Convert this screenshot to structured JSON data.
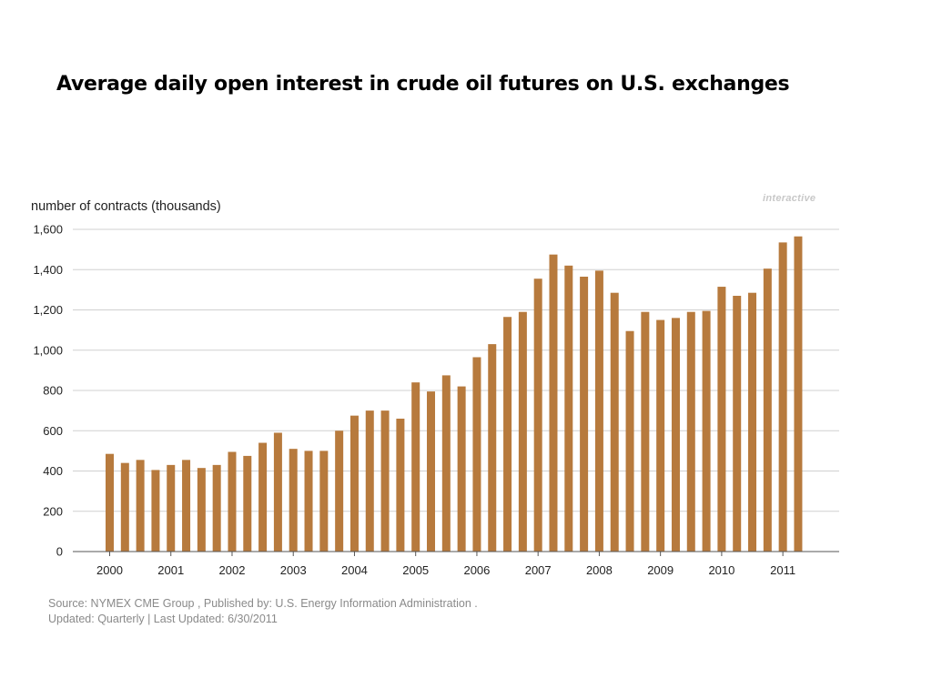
{
  "page": {
    "title": "Average daily open interest in crude oil futures on U.S. exchanges",
    "watermark": "interactive"
  },
  "chart_data": {
    "type": "bar",
    "title": "",
    "ylabel": "number of contracts (thousands)",
    "xlabel": "",
    "ylim": [
      0,
      1600
    ],
    "yticks": [
      0,
      200,
      400,
      600,
      800,
      1000,
      1200,
      1400,
      1600
    ],
    "ytick_labels": [
      "0",
      "200",
      "400",
      "600",
      "800",
      "1,000",
      "1,200",
      "1,400",
      "1,600"
    ],
    "xtick_labels": [
      "2000",
      "2001",
      "2002",
      "2003",
      "2004",
      "2005",
      "2006",
      "2007",
      "2008",
      "2009",
      "2010",
      "2011"
    ],
    "grid": true,
    "bar_color": "#b77a3d",
    "series": [
      {
        "values": [
          485,
          440,
          455,
          405,
          430,
          455,
          415,
          430,
          495,
          475,
          540,
          590,
          510,
          500,
          500,
          600,
          675,
          700,
          700,
          660,
          840,
          795,
          875,
          820,
          965,
          1030,
          1165,
          1190,
          1355,
          1475,
          1420,
          1365,
          1395,
          1285,
          1095,
          1190,
          1150,
          1160,
          1190,
          1195,
          1315,
          1270,
          1285,
          1405,
          1535,
          1565
        ]
      }
    ]
  },
  "footer": {
    "source": "Source: NYMEX CME Group , Published by: U.S. Energy Information Administration .",
    "updated": "Updated: Quarterly | Last Updated: 6/30/2011"
  }
}
